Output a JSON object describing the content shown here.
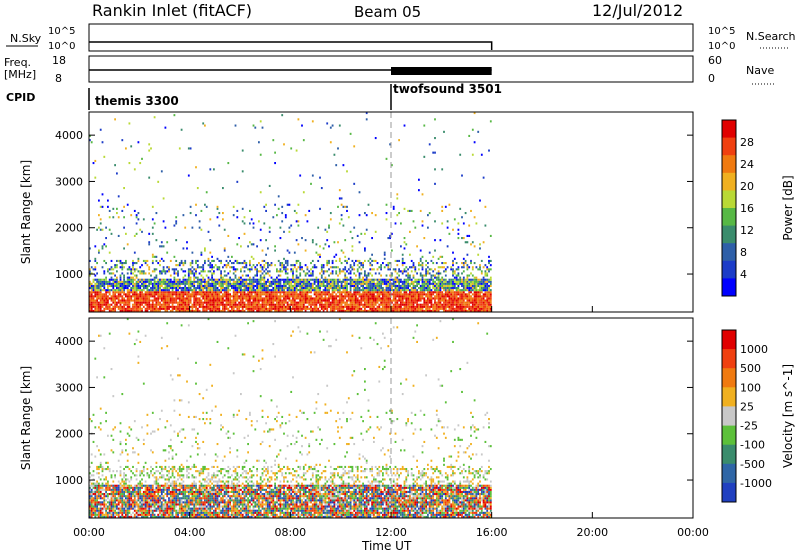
{
  "header": {
    "station": "Rankin Inlet (fitACF)",
    "beam": "Beam 05",
    "date": "12/Jul/2012"
  },
  "left_labels": {
    "nsky": "N.Sky",
    "freq_top": "Freq.",
    "freq_bottom": "[MHz]",
    "cpid": "CPID"
  },
  "right_labels": {
    "nsearch": "N.Search",
    "nave": "Nave"
  },
  "ticks": {
    "nsky_left": [
      "10^5",
      "10^0"
    ],
    "nsky_right": [
      "10^5",
      "10^0"
    ],
    "freq_left": [
      "18",
      "8"
    ],
    "nave_right": [
      "60",
      "0"
    ]
  },
  "cpid_labels": [
    "themis 3300",
    "twofsound 3501"
  ],
  "colors": {
    "power": [
      "#0000ff",
      "#1c3cc8",
      "#2e5fa8",
      "#3a8c6c",
      "#57b845",
      "#b9d936",
      "#f0b020",
      "#f07a10",
      "#f04010",
      "#e00000"
    ],
    "velocity": [
      "#2040c0",
      "#2f66a6",
      "#3a8c6c",
      "#5cc03a",
      "#c8c8c8",
      "#f0b020",
      "#f07a10",
      "#f04010",
      "#e00000"
    ]
  },
  "chart_data": [
    {
      "type": "heatmap",
      "title": "Power",
      "ylabel": "Slant Range [km]",
      "xlabel": "Time UT",
      "x": [
        "00:00",
        "04:00",
        "08:00",
        "12:00",
        "16:00",
        "20:00",
        "00:00"
      ],
      "xlim_hours": [
        0,
        24
      ],
      "y": [
        1000,
        2000,
        3000,
        4000
      ],
      "ylim": [
        180,
        4500
      ],
      "colorbar_label": "Power [dB]",
      "colorbar_ticks": [
        "28",
        "24",
        "20",
        "16",
        "12",
        "8",
        "4"
      ],
      "data_end_hour": 16
    },
    {
      "type": "heatmap",
      "title": "Velocity",
      "ylabel": "Slant Range [km]",
      "xlabel": "Time UT",
      "x": [
        "00:00",
        "04:00",
        "08:00",
        "12:00",
        "16:00",
        "20:00",
        "00:00"
      ],
      "xlim_hours": [
        0,
        24
      ],
      "y": [
        1000,
        2000,
        3000,
        4000
      ],
      "ylim": [
        180,
        4500
      ],
      "colorbar_label": "Velocity [m s^-1]",
      "colorbar_ticks": [
        "1000",
        "500",
        "100",
        "25",
        "-25",
        "-100",
        "-500",
        "-1000"
      ],
      "data_end_hour": 16
    }
  ]
}
